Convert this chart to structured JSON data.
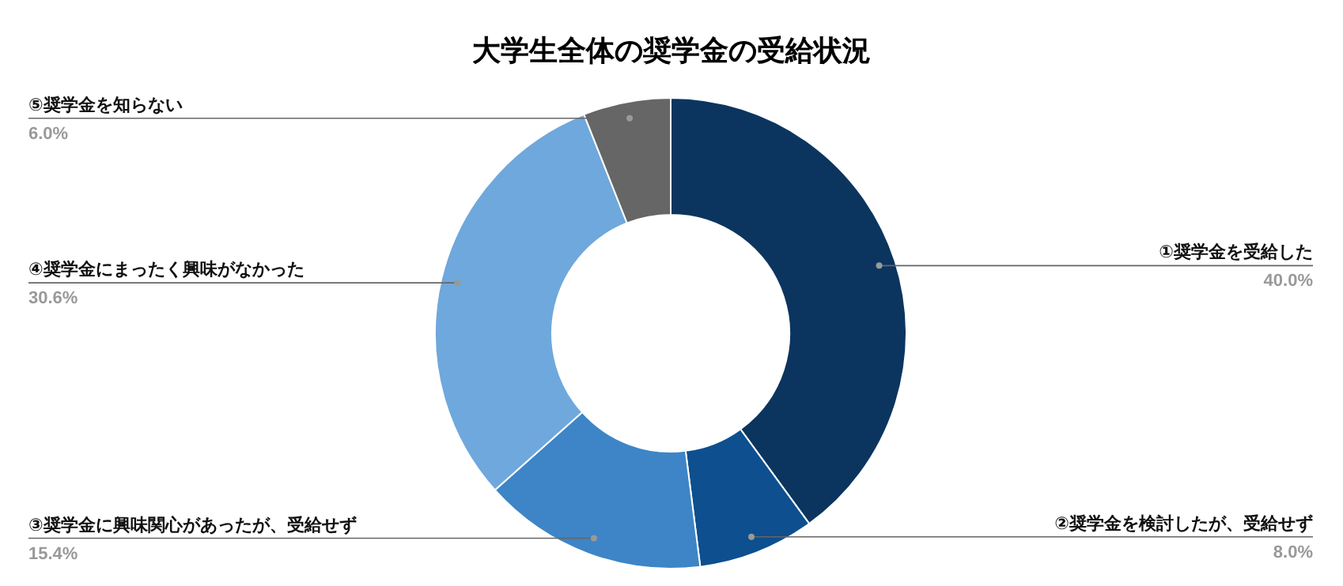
{
  "chart_data": {
    "type": "donut",
    "title": "大学生全体の奨学金の受給状況",
    "categories": [
      "①奨学金を受給した",
      "②奨学金を検討したが、受給せず",
      "③奨学金に興味関心があったが、受給せず",
      "④奨学金にまったく興味がなかった",
      "⑤奨学金を知らない"
    ],
    "values": [
      40.0,
      8.0,
      15.4,
      30.6,
      6.0
    ],
    "value_labels": [
      "40.0%",
      "8.0%",
      "15.4%",
      "30.6%",
      "6.0%"
    ],
    "colors": [
      "#0b355f",
      "#0d4f8f",
      "#3d85c6",
      "#6fa8dc",
      "#666666"
    ]
  }
}
